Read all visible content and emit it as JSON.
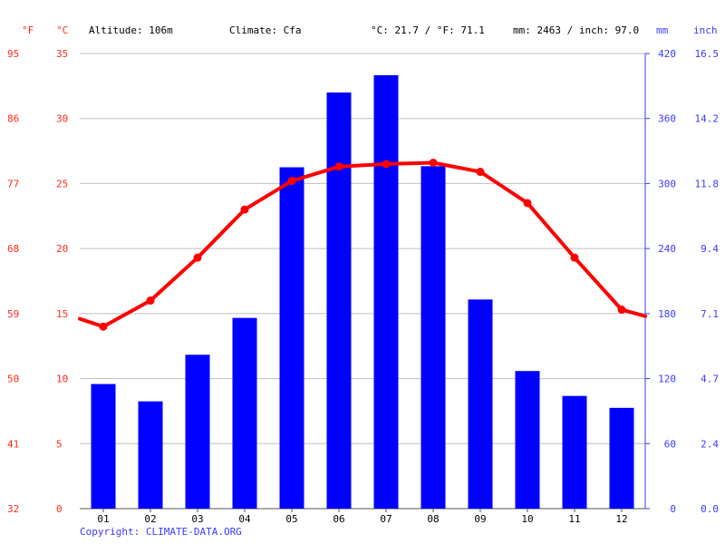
{
  "header": {
    "f_unit": "°F",
    "c_unit": "°C",
    "altitude": "Altitude: 106m",
    "climate": "Climate: Cfa",
    "temp_avg": "°C: 21.7 / °F: 71.1",
    "precip_total": "mm: 2463 / inch: 97.0",
    "mm_unit": "mm",
    "inch_unit": "inch"
  },
  "copyright": "Copyright: CLIMATE-DATA.ORG",
  "colors": {
    "temperature": "#ff0000",
    "precipitation": "#0000ff",
    "axis_red": "#ff2a1a",
    "axis_blue": "#3a3aff",
    "grid": "#bfbfbf"
  },
  "chart_data": {
    "type": "bar",
    "combo": "bar + line",
    "categories": [
      "01",
      "02",
      "03",
      "04",
      "05",
      "06",
      "07",
      "08",
      "09",
      "10",
      "11",
      "12"
    ],
    "series": [
      {
        "kind": "bar",
        "axis": "right",
        "values": [
          115,
          99,
          142,
          176,
          315,
          384,
          400,
          316,
          193,
          127,
          104,
          93
        ]
      },
      {
        "kind": "line",
        "axis": "left",
        "values": [
          14.0,
          16.0,
          19.3,
          23.0,
          25.2,
          26.3,
          26.5,
          26.6,
          25.9,
          23.5,
          19.3,
          15.3
        ]
      }
    ],
    "line_edge_values": {
      "start": 14.6,
      "end": 14.8
    },
    "y_left_c": {
      "ticks": [
        "0",
        "5",
        "10",
        "15",
        "20",
        "25",
        "30",
        "35"
      ],
      "range": [
        0,
        35
      ]
    },
    "y_left_f": {
      "ticks": [
        "32",
        "41",
        "50",
        "59",
        "68",
        "77",
        "86",
        "95"
      ]
    },
    "y_right_mm": {
      "ticks": [
        "0",
        "60",
        "120",
        "180",
        "240",
        "300",
        "360",
        "420"
      ],
      "range": [
        0,
        420
      ]
    },
    "y_right_inch": {
      "ticks": [
        "0.0",
        "2.4",
        "4.7",
        "7.1",
        "9.4",
        "11.8",
        "14.2",
        "16.5"
      ]
    },
    "grid": true
  }
}
